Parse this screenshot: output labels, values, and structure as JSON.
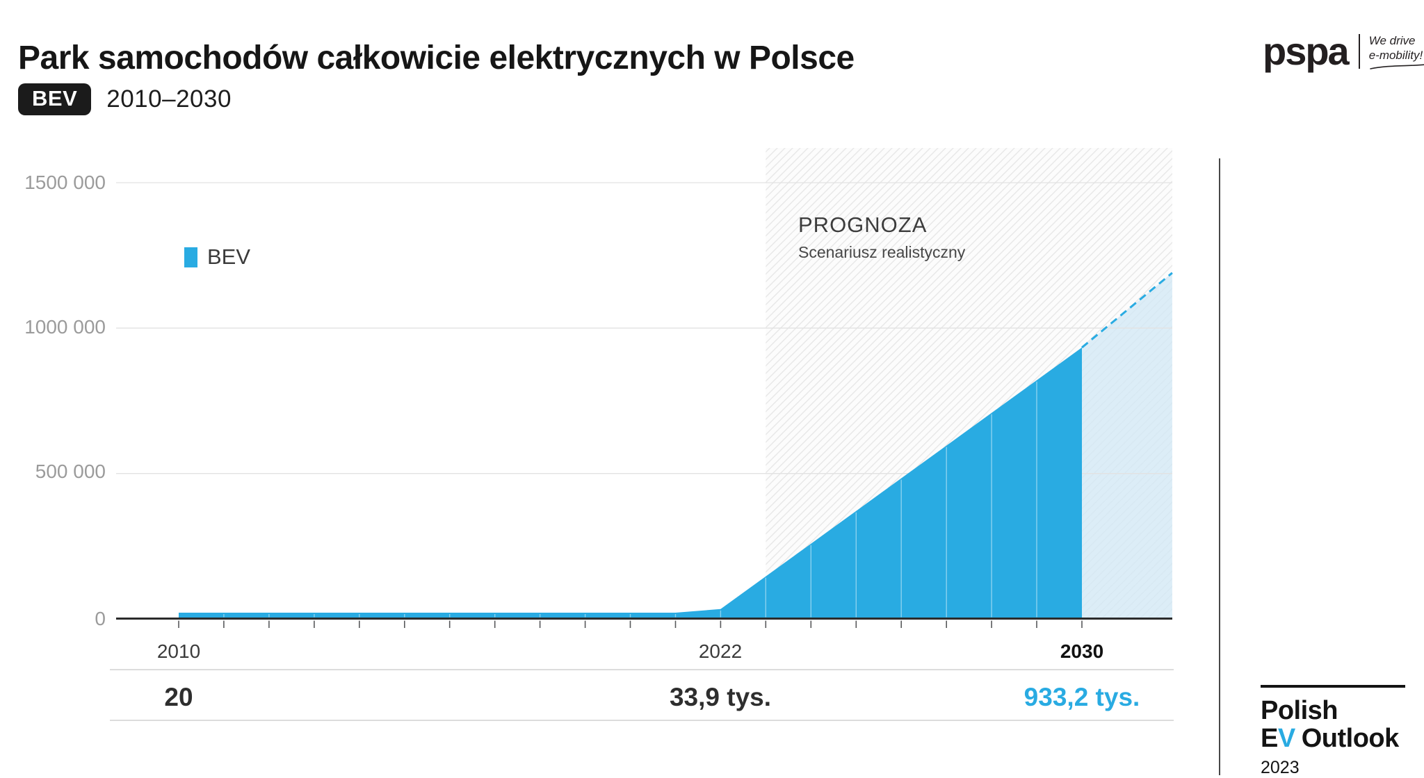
{
  "header": {
    "title": "Park samochodów całkowicie elektrycznych w Polsce",
    "badge": "BEV",
    "range": "2010–2030"
  },
  "logos": {
    "pspa": {
      "wordmark": "pspa",
      "tagline_line1": "We drive",
      "tagline_line2": "e-mobility!"
    },
    "outlook": {
      "line1": "Polish",
      "line2_e": "E",
      "line2_v": "V",
      "line2_rest": "Outlook",
      "year": "2023"
    }
  },
  "legend": {
    "label": "BEV"
  },
  "forecast_note": {
    "title": "PROGNOZA",
    "subtitle": "Scenariusz realistyczny"
  },
  "chart_data": {
    "type": "area",
    "title": "Park samochodów całkowicie elektrycznych w Polsce",
    "series_name": "BEV",
    "x": [
      2010,
      2011,
      2012,
      2013,
      2014,
      2015,
      2016,
      2017,
      2018,
      2019,
      2020,
      2021,
      2022,
      2023,
      2024,
      2025,
      2026,
      2027,
      2028,
      2029,
      2030
    ],
    "values": [
      20,
      50,
      100,
      200,
      350,
      600,
      1000,
      1800,
      3300,
      6000,
      11000,
      20000,
      33900,
      146300,
      258700,
      371100,
      483600,
      596000,
      708400,
      820800,
      933200
    ],
    "labeled_points": [
      {
        "x": 2010,
        "value": 20,
        "label": "20"
      },
      {
        "x": 2022,
        "value": 33900,
        "label": "33,9 tys."
      },
      {
        "x": 2030,
        "value": 933200,
        "label": "933,2 tys."
      }
    ],
    "x_tick_labels": [
      {
        "x": 2010,
        "label": "2010"
      },
      {
        "x": 2022,
        "label": "2022"
      },
      {
        "x": 2030,
        "label": "2030"
      }
    ],
    "y_ticks": [
      {
        "value": 1500000,
        "label": "1500 000"
      },
      {
        "value": 1000000,
        "label": "1000 000"
      },
      {
        "value": 500000,
        "label": "500 000"
      },
      {
        "value": 0,
        "label": "0"
      }
    ],
    "ylim": [
      0,
      1500000
    ],
    "xlim": [
      2010,
      2032
    ],
    "grid": true,
    "legend_position": "top-left-inside",
    "forecast": {
      "start_x": 2023,
      "label": "PROGNOZA",
      "sublabel": "Scenariusz realistyczny",
      "hatched": true
    },
    "projection": {
      "from_x": 2030,
      "from_value": 933200,
      "to_x": 2032,
      "to_value": 1190000,
      "style": "dashed"
    },
    "colors": {
      "bev": "#29ABE2",
      "projection_fill": "#D3E9F5",
      "grid": "#E2E2E2",
      "axis": "#2B2B2B",
      "hatch_line": "#E7E7E7",
      "accent_text": "#29ABE2"
    }
  }
}
